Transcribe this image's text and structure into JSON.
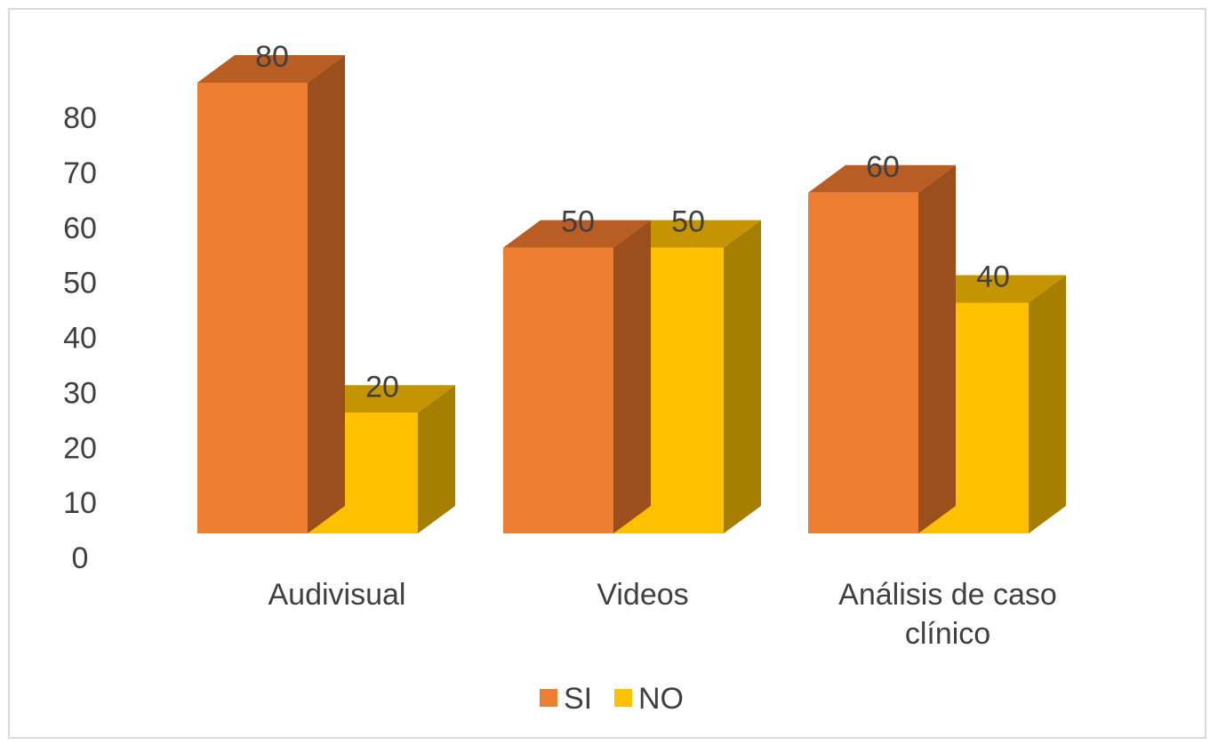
{
  "chart_data": {
    "type": "bar",
    "style": "3d-clustered-column",
    "categories": [
      [
        "Audivisual"
      ],
      [
        "Videos"
      ],
      [
        "Análisis de caso",
        "clínico"
      ]
    ],
    "series": [
      {
        "name": "SI",
        "values": [
          80,
          50,
          60
        ],
        "color": "#ED7D31",
        "top_color": "#B85D23",
        "side_color": "#9B4F1D"
      },
      {
        "name": "NO",
        "values": [
          20,
          50,
          40
        ],
        "color": "#FFC000",
        "top_color": "#C49500",
        "side_color": "#A67F00"
      }
    ],
    "y_ticks": [
      0,
      10,
      20,
      30,
      40,
      50,
      60,
      70,
      80
    ],
    "ylim": [
      0,
      80
    ],
    "data_labels": true,
    "grid": false,
    "legend_position": "bottom",
    "title": "",
    "xlabel": "",
    "ylabel": "",
    "frame_color": "#D9D9D9",
    "text_color": "#404040"
  }
}
